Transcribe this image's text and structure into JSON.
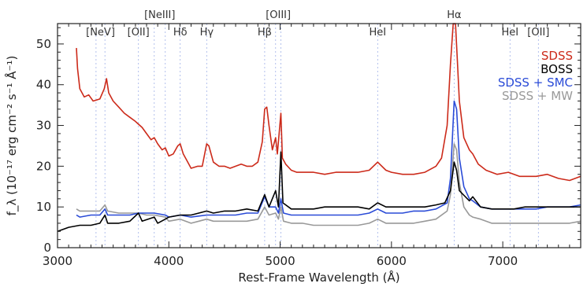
{
  "chart_data": {
    "type": "line",
    "xlabel": "Rest-Frame Wavelength (Å)",
    "ylabel": "f_λ (10⁻¹⁷ erg cm⁻² s⁻¹ Å⁻¹)",
    "xlim": [
      3000,
      7700
    ],
    "ylim": [
      0,
      55
    ],
    "xticks": [
      3000,
      4000,
      5000,
      6000,
      7000
    ],
    "yticks": [
      0,
      10,
      20,
      30,
      40,
      50
    ],
    "grid": false,
    "legend_position": "top-right",
    "line_markers": [
      {
        "label": "[NeV]",
        "wavelengths": [
          3346,
          3426
        ]
      },
      {
        "label": "[OII]",
        "wavelengths": [
          3727
        ]
      },
      {
        "label": "[NeIII]",
        "wavelengths": [
          3869,
          3968
        ]
      },
      {
        "label": "Hδ",
        "wavelengths": [
          4102
        ]
      },
      {
        "label": "Hγ",
        "wavelengths": [
          4340
        ]
      },
      {
        "label": "Hβ",
        "wavelengths": [
          4861
        ]
      },
      {
        "label": "[OIII]",
        "wavelengths": [
          4959,
          5007
        ]
      },
      {
        "label": "HeI",
        "wavelengths": [
          5876
        ]
      },
      {
        "label": "Hα",
        "wavelengths": [
          6563
        ]
      },
      {
        "label": "HeI",
        "wavelengths": [
          7065
        ]
      },
      {
        "label": "[OII]",
        "wavelengths": [
          7320
        ]
      }
    ],
    "series": [
      {
        "name": "SDSS",
        "color": "#cc2a1a",
        "points": [
          [
            3170,
            49
          ],
          [
            3180,
            44
          ],
          [
            3200,
            39
          ],
          [
            3240,
            37
          ],
          [
            3280,
            37.5
          ],
          [
            3320,
            36
          ],
          [
            3380,
            36.5
          ],
          [
            3420,
            39
          ],
          [
            3440,
            41.5
          ],
          [
            3460,
            38
          ],
          [
            3500,
            36
          ],
          [
            3550,
            34.5
          ],
          [
            3600,
            33
          ],
          [
            3650,
            32
          ],
          [
            3700,
            31
          ],
          [
            3720,
            30.5
          ],
          [
            3760,
            29.5
          ],
          [
            3800,
            28
          ],
          [
            3840,
            26.5
          ],
          [
            3869,
            27
          ],
          [
            3900,
            25.5
          ],
          [
            3940,
            24
          ],
          [
            3968,
            24.5
          ],
          [
            4000,
            22.5
          ],
          [
            4040,
            23
          ],
          [
            4080,
            25
          ],
          [
            4102,
            25.5
          ],
          [
            4130,
            23
          ],
          [
            4160,
            21.5
          ],
          [
            4200,
            19.5
          ],
          [
            4260,
            20
          ],
          [
            4300,
            20
          ],
          [
            4340,
            25.5
          ],
          [
            4360,
            25
          ],
          [
            4400,
            21
          ],
          [
            4450,
            20
          ],
          [
            4500,
            20
          ],
          [
            4550,
            19.5
          ],
          [
            4600,
            20
          ],
          [
            4650,
            20.5
          ],
          [
            4700,
            20
          ],
          [
            4750,
            20
          ],
          [
            4800,
            21
          ],
          [
            4840,
            26
          ],
          [
            4861,
            34
          ],
          [
            4880,
            34.5
          ],
          [
            4900,
            30
          ],
          [
            4930,
            24
          ],
          [
            4959,
            27
          ],
          [
            4975,
            23
          ],
          [
            5007,
            33
          ],
          [
            5020,
            22
          ],
          [
            5050,
            20.5
          ],
          [
            5100,
            19
          ],
          [
            5150,
            18.5
          ],
          [
            5200,
            18.5
          ],
          [
            5300,
            18.5
          ],
          [
            5400,
            18
          ],
          [
            5500,
            18.5
          ],
          [
            5600,
            18.5
          ],
          [
            5700,
            18.5
          ],
          [
            5800,
            19
          ],
          [
            5876,
            21
          ],
          [
            5950,
            19
          ],
          [
            6000,
            18.5
          ],
          [
            6100,
            18
          ],
          [
            6200,
            18
          ],
          [
            6300,
            18.5
          ],
          [
            6400,
            20
          ],
          [
            6450,
            22
          ],
          [
            6500,
            30
          ],
          [
            6530,
            45
          ],
          [
            6555,
            55
          ],
          [
            6575,
            55
          ],
          [
            6590,
            47
          ],
          [
            6610,
            36
          ],
          [
            6650,
            27
          ],
          [
            6700,
            24
          ],
          [
            6730,
            23
          ],
          [
            6780,
            20.5
          ],
          [
            6850,
            19
          ],
          [
            6950,
            18
          ],
          [
            7050,
            18.5
          ],
          [
            7150,
            17.5
          ],
          [
            7300,
            17.5
          ],
          [
            7400,
            18
          ],
          [
            7500,
            17
          ],
          [
            7600,
            16.5
          ],
          [
            7700,
            17.5
          ]
        ]
      },
      {
        "name": "BOSS",
        "color": "#000000",
        "points": [
          [
            3000,
            4
          ],
          [
            3100,
            5
          ],
          [
            3200,
            5.5
          ],
          [
            3300,
            5.5
          ],
          [
            3380,
            6
          ],
          [
            3426,
            8
          ],
          [
            3450,
            6
          ],
          [
            3550,
            6
          ],
          [
            3650,
            6.5
          ],
          [
            3727,
            8.5
          ],
          [
            3760,
            6.5
          ],
          [
            3869,
            7.5
          ],
          [
            3900,
            6
          ],
          [
            3968,
            7
          ],
          [
            4000,
            7.5
          ],
          [
            4102,
            8
          ],
          [
            4200,
            8
          ],
          [
            4340,
            9
          ],
          [
            4400,
            8.5
          ],
          [
            4500,
            9
          ],
          [
            4600,
            9
          ],
          [
            4700,
            9.5
          ],
          [
            4800,
            9
          ],
          [
            4861,
            13
          ],
          [
            4900,
            10
          ],
          [
            4959,
            14
          ],
          [
            4985,
            10
          ],
          [
            5007,
            23.5
          ],
          [
            5025,
            11
          ],
          [
            5100,
            9.5
          ],
          [
            5200,
            9.5
          ],
          [
            5300,
            9.5
          ],
          [
            5400,
            10
          ],
          [
            5500,
            10
          ],
          [
            5600,
            10
          ],
          [
            5700,
            10
          ],
          [
            5800,
            9.5
          ],
          [
            5876,
            11
          ],
          [
            5950,
            10
          ],
          [
            6100,
            10
          ],
          [
            6200,
            10
          ],
          [
            6300,
            10
          ],
          [
            6400,
            10.5
          ],
          [
            6480,
            11
          ],
          [
            6530,
            14
          ],
          [
            6563,
            21
          ],
          [
            6585,
            19
          ],
          [
            6610,
            14
          ],
          [
            6700,
            11.5
          ],
          [
            6730,
            12.5
          ],
          [
            6800,
            10
          ],
          [
            6900,
            9.5
          ],
          [
            7000,
            9.5
          ],
          [
            7100,
            9.5
          ],
          [
            7200,
            10
          ],
          [
            7300,
            10
          ],
          [
            7400,
            10
          ],
          [
            7500,
            10
          ],
          [
            7600,
            10
          ],
          [
            7700,
            10
          ]
        ]
      },
      {
        "name": "SDSS + SMC",
        "color": "#2a4bd7",
        "points": [
          [
            3170,
            8
          ],
          [
            3200,
            7.5
          ],
          [
            3300,
            8
          ],
          [
            3380,
            8
          ],
          [
            3426,
            9.5
          ],
          [
            3450,
            8
          ],
          [
            3550,
            8
          ],
          [
            3650,
            8
          ],
          [
            3727,
            8.5
          ],
          [
            3800,
            8.5
          ],
          [
            3869,
            8.5
          ],
          [
            3968,
            8
          ],
          [
            4000,
            7.5
          ],
          [
            4102,
            8
          ],
          [
            4200,
            7.5
          ],
          [
            4340,
            8
          ],
          [
            4400,
            8
          ],
          [
            4500,
            8
          ],
          [
            4600,
            8
          ],
          [
            4700,
            8.5
          ],
          [
            4800,
            8.5
          ],
          [
            4861,
            12.5
          ],
          [
            4900,
            10
          ],
          [
            4959,
            10
          ],
          [
            4985,
            8.5
          ],
          [
            5007,
            12
          ],
          [
            5030,
            8.5
          ],
          [
            5100,
            8
          ],
          [
            5200,
            8
          ],
          [
            5300,
            8
          ],
          [
            5400,
            8
          ],
          [
            5500,
            8
          ],
          [
            5600,
            8
          ],
          [
            5700,
            8
          ],
          [
            5800,
            8.5
          ],
          [
            5876,
            9.5
          ],
          [
            5950,
            8.5
          ],
          [
            6100,
            8.5
          ],
          [
            6200,
            9
          ],
          [
            6300,
            9
          ],
          [
            6400,
            9.5
          ],
          [
            6500,
            11
          ],
          [
            6530,
            17
          ],
          [
            6563,
            36
          ],
          [
            6585,
            34
          ],
          [
            6610,
            22
          ],
          [
            6650,
            15
          ],
          [
            6700,
            12
          ],
          [
            6730,
            11.5
          ],
          [
            6800,
            10
          ],
          [
            6900,
            9.5
          ],
          [
            7000,
            9.5
          ],
          [
            7100,
            9.5
          ],
          [
            7200,
            9.5
          ],
          [
            7300,
            9.5
          ],
          [
            7400,
            10
          ],
          [
            7500,
            10
          ],
          [
            7600,
            10
          ],
          [
            7700,
            10.5
          ]
        ]
      },
      {
        "name": "SDSS + MW",
        "color": "#999999",
        "points": [
          [
            3170,
            9.5
          ],
          [
            3200,
            9
          ],
          [
            3300,
            9
          ],
          [
            3380,
            9
          ],
          [
            3426,
            10.5
          ],
          [
            3450,
            9
          ],
          [
            3550,
            8.5
          ],
          [
            3650,
            8.5
          ],
          [
            3727,
            8.5
          ],
          [
            3800,
            8
          ],
          [
            3869,
            8
          ],
          [
            3968,
            7.5
          ],
          [
            4000,
            6.5
          ],
          [
            4102,
            7
          ],
          [
            4200,
            6
          ],
          [
            4340,
            7
          ],
          [
            4400,
            6.5
          ],
          [
            4500,
            6.5
          ],
          [
            4600,
            6.5
          ],
          [
            4700,
            6.5
          ],
          [
            4800,
            7
          ],
          [
            4861,
            10
          ],
          [
            4900,
            8
          ],
          [
            4959,
            8.5
          ],
          [
            4985,
            7
          ],
          [
            5007,
            10
          ],
          [
            5030,
            6.5
          ],
          [
            5100,
            6
          ],
          [
            5200,
            6
          ],
          [
            5300,
            5.5
          ],
          [
            5400,
            5.5
          ],
          [
            5500,
            5.5
          ],
          [
            5600,
            5.5
          ],
          [
            5700,
            5.5
          ],
          [
            5800,
            6
          ],
          [
            5876,
            7
          ],
          [
            5950,
            6
          ],
          [
            6100,
            6
          ],
          [
            6200,
            6
          ],
          [
            6300,
            6.5
          ],
          [
            6400,
            7
          ],
          [
            6500,
            9
          ],
          [
            6530,
            13
          ],
          [
            6563,
            25.5
          ],
          [
            6585,
            24
          ],
          [
            6610,
            16
          ],
          [
            6650,
            10
          ],
          [
            6700,
            8
          ],
          [
            6730,
            7.5
          ],
          [
            6800,
            7
          ],
          [
            6900,
            6
          ],
          [
            7000,
            6
          ],
          [
            7100,
            6
          ],
          [
            7200,
            6
          ],
          [
            7300,
            6
          ],
          [
            7400,
            6
          ],
          [
            7500,
            6
          ],
          [
            7600,
            6
          ],
          [
            7700,
            6.5
          ]
        ]
      }
    ]
  }
}
